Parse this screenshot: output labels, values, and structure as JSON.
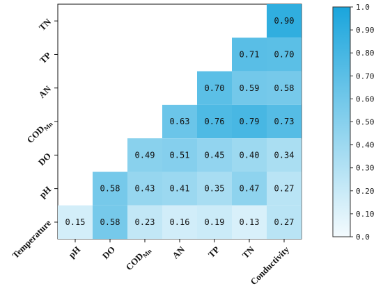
{
  "chart_data": {
    "type": "heatmap",
    "layout": "lower-triangle",
    "columns": [
      {
        "main": "pH",
        "sub": ""
      },
      {
        "main": "DO",
        "sub": ""
      },
      {
        "main": "COD",
        "sub": "Mn"
      },
      {
        "main": "AN",
        "sub": ""
      },
      {
        "main": "TP",
        "sub": ""
      },
      {
        "main": "TN",
        "sub": ""
      },
      {
        "main": "Conductivity",
        "sub": ""
      }
    ],
    "rows": [
      {
        "main": "TN",
        "sub": ""
      },
      {
        "main": "TP",
        "sub": ""
      },
      {
        "main": "AN",
        "sub": ""
      },
      {
        "main": "COD",
        "sub": "Mn"
      },
      {
        "main": "DO",
        "sub": ""
      },
      {
        "main": "pH",
        "sub": ""
      },
      {
        "main": "Temperature",
        "sub": ""
      }
    ],
    "cells": [
      {
        "row": 0,
        "col": 6,
        "value": 0.9,
        "label": "0.90"
      },
      {
        "row": 1,
        "col": 5,
        "value": 0.71,
        "label": "0.71"
      },
      {
        "row": 1,
        "col": 6,
        "value": 0.7,
        "label": "0.70"
      },
      {
        "row": 2,
        "col": 4,
        "value": 0.7,
        "label": "0.70"
      },
      {
        "row": 2,
        "col": 5,
        "value": 0.59,
        "label": "0.59"
      },
      {
        "row": 2,
        "col": 6,
        "value": 0.58,
        "label": "0.58"
      },
      {
        "row": 3,
        "col": 3,
        "value": 0.63,
        "label": "0.63"
      },
      {
        "row": 3,
        "col": 4,
        "value": 0.76,
        "label": "0.76"
      },
      {
        "row": 3,
        "col": 5,
        "value": 0.79,
        "label": "0.79"
      },
      {
        "row": 3,
        "col": 6,
        "value": 0.73,
        "label": "0.73"
      },
      {
        "row": 4,
        "col": 2,
        "value": 0.49,
        "label": "0.49"
      },
      {
        "row": 4,
        "col": 3,
        "value": 0.51,
        "label": "0.51"
      },
      {
        "row": 4,
        "col": 4,
        "value": 0.45,
        "label": "0.45"
      },
      {
        "row": 4,
        "col": 5,
        "value": 0.4,
        "label": "0.40"
      },
      {
        "row": 4,
        "col": 6,
        "value": 0.34,
        "label": "0.34"
      },
      {
        "row": 5,
        "col": 1,
        "value": 0.58,
        "label": "0.58"
      },
      {
        "row": 5,
        "col": 2,
        "value": 0.43,
        "label": "0.43"
      },
      {
        "row": 5,
        "col": 3,
        "value": 0.41,
        "label": "0.41"
      },
      {
        "row": 5,
        "col": 4,
        "value": 0.35,
        "label": "0.35"
      },
      {
        "row": 5,
        "col": 5,
        "value": 0.47,
        "label": "0.47"
      },
      {
        "row": 5,
        "col": 6,
        "value": 0.27,
        "label": "0.27"
      },
      {
        "row": 6,
        "col": 0,
        "value": 0.15,
        "label": "0.15"
      },
      {
        "row": 6,
        "col": 1,
        "value": 0.58,
        "label": "0.58"
      },
      {
        "row": 6,
        "col": 2,
        "value": 0.23,
        "label": "0.23"
      },
      {
        "row": 6,
        "col": 3,
        "value": 0.16,
        "label": "0.16"
      },
      {
        "row": 6,
        "col": 4,
        "value": 0.19,
        "label": "0.19"
      },
      {
        "row": 6,
        "col": 5,
        "value": 0.13,
        "label": "0.13"
      },
      {
        "row": 6,
        "col": 6,
        "value": 0.27,
        "label": "0.27"
      }
    ],
    "colorbar": {
      "range": [
        0,
        1
      ],
      "ticks": [
        {
          "value": 0.0,
          "label": "0.0"
        },
        {
          "value": 0.1,
          "label": "0.10"
        },
        {
          "value": 0.2,
          "label": "0.20"
        },
        {
          "value": 0.3,
          "label": "0.30"
        },
        {
          "value": 0.4,
          "label": "0.40"
        },
        {
          "value": 0.5,
          "label": "0.50"
        },
        {
          "value": 0.6,
          "label": "0.60"
        },
        {
          "value": 0.7,
          "label": "0.70"
        },
        {
          "value": 0.8,
          "label": "0.80"
        },
        {
          "value": 0.9,
          "label": "0.90"
        },
        {
          "value": 1.0,
          "label": "1.0"
        }
      ],
      "color_low": "#f4fbfe",
      "color_high": "#1aa5dc"
    },
    "title": "",
    "xlabel": "",
    "ylabel": "",
    "legend": "right",
    "grid": false
  }
}
